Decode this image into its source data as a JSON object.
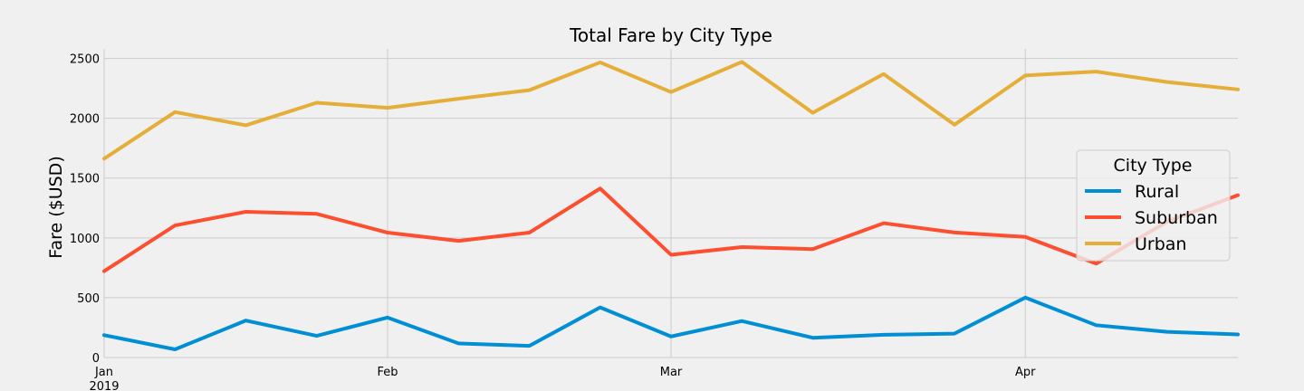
{
  "chart_data": {
    "type": "line",
    "title": "Total Fare by City Type",
    "xlabel": "",
    "ylabel": "Fare ($USD)",
    "ylim": [
      0,
      2580
    ],
    "x_ticks": [
      {
        "x": 0,
        "label": "Jan",
        "sublabel": "2019"
      },
      {
        "x": 4,
        "label": "Feb",
        "sublabel": ""
      },
      {
        "x": 8,
        "label": "Mar",
        "sublabel": ""
      },
      {
        "x": 13,
        "label": "Apr",
        "sublabel": ""
      }
    ],
    "x": [
      0,
      1,
      2,
      3,
      4,
      5,
      6,
      7,
      8,
      9,
      10,
      11,
      12,
      13,
      14,
      15,
      16
    ],
    "y_ticks": [
      0,
      500,
      1000,
      1500,
      2000,
      2500
    ],
    "grid": true,
    "legend": {
      "title": "City Type",
      "position": "right"
    },
    "series": [
      {
        "name": "Rural",
        "color": "#008fd5",
        "values": [
          187,
          68,
          309,
          181,
          334,
          118,
          97,
          419,
          176,
          305,
          165,
          190,
          200,
          501,
          270,
          215,
          193
        ]
      },
      {
        "name": "Suburban",
        "color": "#fc4f30",
        "values": [
          722,
          1104,
          1218,
          1201,
          1044,
          975,
          1044,
          1413,
          859,
          923,
          906,
          1123,
          1045,
          1008,
          785,
          1135,
          1357
        ]
      },
      {
        "name": "Urban",
        "color": "#e5ae38",
        "values": [
          1662,
          2052,
          1941,
          2130,
          2087,
          2163,
          2235,
          2467,
          2219,
          2471,
          2046,
          2370,
          1946,
          2358,
          2390,
          2303,
          2241
        ]
      }
    ]
  }
}
